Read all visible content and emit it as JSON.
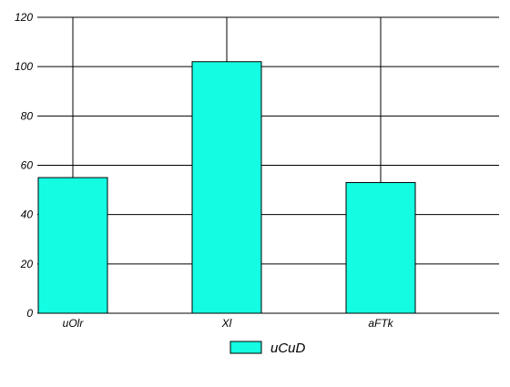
{
  "chart_data": {
    "type": "bar",
    "categories": [
      "uOlr",
      "Xl",
      "aFTk"
    ],
    "series": [
      {
        "name": "uCuD",
        "values": [
          55,
          102,
          53
        ],
        "color": "#14fde3"
      }
    ],
    "yticks": [
      "0",
      "20",
      "40",
      "60",
      "80",
      "100",
      "120"
    ],
    "ylim": [
      0,
      120
    ],
    "grid": true,
    "legend": "bottom-center"
  }
}
